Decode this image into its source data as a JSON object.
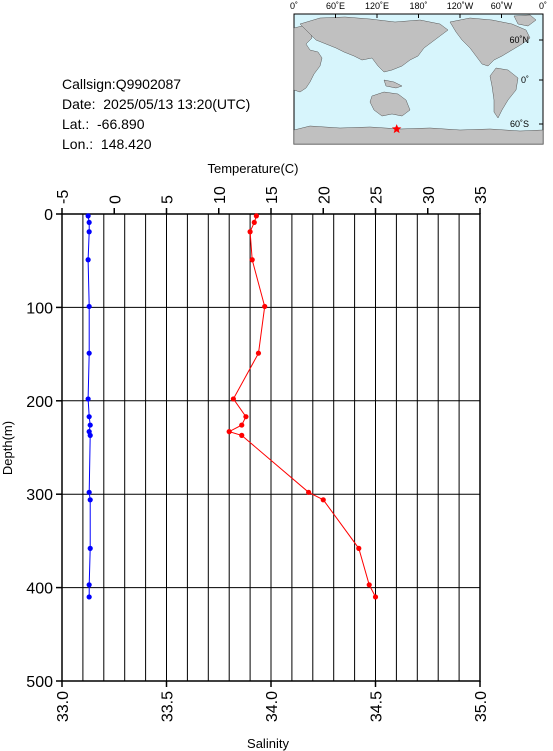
{
  "info": {
    "callsign": "Callsign:Q9902087",
    "date": "Date:  2025/05/13 13:20(UTC)",
    "lat": "Lat.:  -66.890",
    "lon": "Lon.:  148.420"
  },
  "map": {
    "top_labels": [
      "0˚",
      "60˚E",
      "120˚E",
      "180˚",
      "120˚W",
      "60˚W",
      "0˚"
    ],
    "right_labels": [
      "60˚N",
      "0˚",
      "60˚S"
    ],
    "ocean_color": "#d7f5fc",
    "land_color": "#c0c0c0",
    "marker_color": "#ff0000",
    "marker_icon": "star-icon"
  },
  "chart_data": {
    "type": "line",
    "ylabel": "Depth(m)",
    "ylim": [
      0,
      500
    ],
    "yticks": [
      "0",
      "100",
      "200",
      "300",
      "400",
      "500"
    ],
    "temperature_axis": {
      "label": "Temperature(C)",
      "range": [
        -5,
        35
      ],
      "ticks": [
        "-5",
        "0",
        "5",
        "10",
        "15",
        "20",
        "25",
        "30",
        "35"
      ]
    },
    "salinity_axis": {
      "label": "Salinity",
      "range": [
        33.0,
        35.0
      ],
      "ticks": [
        "33.0",
        "33.5",
        "34.0",
        "34.5",
        "35.0"
      ]
    },
    "grid": true,
    "series": [
      {
        "axis": "temperature",
        "color": "#0000ff",
        "points": [
          {
            "value": -2.5,
            "depth": 2
          },
          {
            "value": -2.4,
            "depth": 9
          },
          {
            "value": -2.4,
            "depth": 19
          },
          {
            "value": -2.5,
            "depth": 49
          },
          {
            "value": -2.4,
            "depth": 99
          },
          {
            "value": -2.4,
            "depth": 149
          },
          {
            "value": -2.5,
            "depth": 198
          },
          {
            "value": -2.4,
            "depth": 217
          },
          {
            "value": -2.3,
            "depth": 226
          },
          {
            "value": -2.4,
            "depth": 233
          },
          {
            "value": -2.3,
            "depth": 237
          },
          {
            "value": -2.4,
            "depth": 298
          },
          {
            "value": -2.3,
            "depth": 306
          },
          {
            "value": -2.3,
            "depth": 358
          },
          {
            "value": -2.4,
            "depth": 397
          },
          {
            "value": -2.4,
            "depth": 410
          }
        ]
      },
      {
        "axis": "salinity",
        "color": "#ff0000",
        "points": [
          {
            "value": 33.93,
            "depth": 2
          },
          {
            "value": 33.92,
            "depth": 9
          },
          {
            "value": 33.9,
            "depth": 19
          },
          {
            "value": 33.91,
            "depth": 49
          },
          {
            "value": 33.97,
            "depth": 99
          },
          {
            "value": 33.94,
            "depth": 149
          },
          {
            "value": 33.82,
            "depth": 198
          },
          {
            "value": 33.88,
            "depth": 217
          },
          {
            "value": 33.86,
            "depth": 226
          },
          {
            "value": 33.8,
            "depth": 233
          },
          {
            "value": 33.86,
            "depth": 237
          },
          {
            "value": 34.18,
            "depth": 298
          },
          {
            "value": 34.25,
            "depth": 306
          },
          {
            "value": 34.42,
            "depth": 358
          },
          {
            "value": 34.47,
            "depth": 397
          },
          {
            "value": 34.5,
            "depth": 410
          }
        ]
      }
    ]
  }
}
